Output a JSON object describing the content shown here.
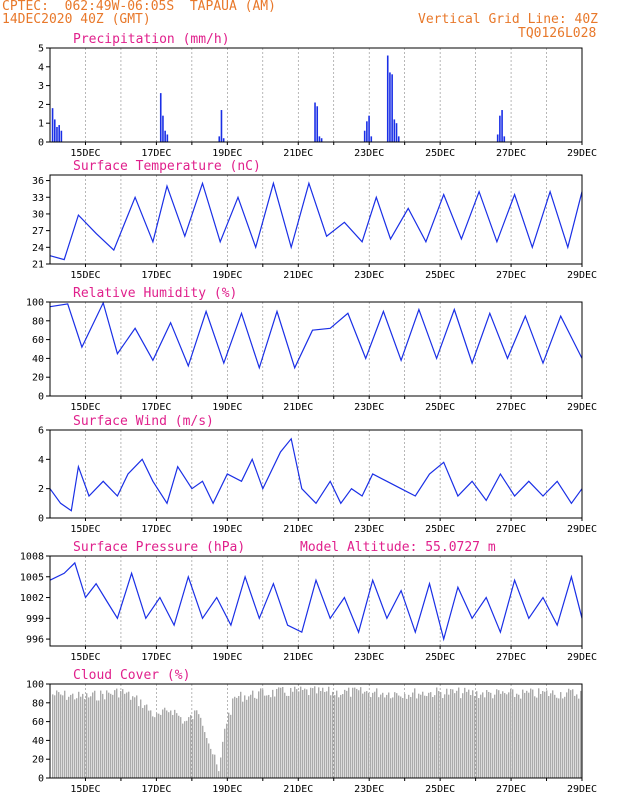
{
  "header": {
    "line1": "CPTEC:  062:49W-06:05S  TAPAUA (AM)",
    "line2": "14DEC2020 40Z (GMT)",
    "grid_note": "Vertical Grid Line: 40Z",
    "code": "TQ0126L028"
  },
  "colors": {
    "header": "#e8782a",
    "title": "#e0208c",
    "series": "#1a2fe6",
    "cloud": "#aaaaaa"
  },
  "chart_data": [
    {
      "type": "bar",
      "title": "Precipitation (mm/h)",
      "ylim": [
        0,
        5
      ],
      "yticks": [
        "0",
        "1",
        "2",
        "3",
        "4",
        "5"
      ],
      "xticks": [
        "15DEC",
        "17DEC",
        "19DEC",
        "21DEC",
        "23DEC",
        "25DEC",
        "27DEC",
        "29DEC"
      ],
      "bursts": [
        {
          "x": 14.05,
          "values": [
            1.8,
            1.2,
            0.8,
            0.9,
            0.6
          ]
        },
        {
          "x": 17.1,
          "values": [
            2.6,
            1.4,
            0.6,
            0.4
          ]
        },
        {
          "x": 18.75,
          "values": [
            0.3,
            1.7,
            0.2
          ]
        },
        {
          "x": 21.45,
          "values": [
            2.1,
            1.9,
            0.3,
            0.2
          ]
        },
        {
          "x": 22.85,
          "values": [
            0.6,
            1.1,
            1.4,
            0.3
          ]
        },
        {
          "x": 23.5,
          "values": [
            4.6,
            3.7,
            3.6,
            1.2,
            1.0,
            0.3
          ]
        },
        {
          "x": 26.6,
          "values": [
            0.4,
            1.4,
            1.7,
            0.3
          ]
        }
      ]
    },
    {
      "type": "line",
      "title": "Surface Temperature (nC)",
      "ylim": [
        21,
        37
      ],
      "yticks": [
        "21",
        "24",
        "27",
        "30",
        "33",
        "36"
      ],
      "xticks": [
        "15DEC",
        "17DEC",
        "19DEC",
        "21DEC",
        "23DEC",
        "25DEC",
        "27DEC",
        "29DEC"
      ],
      "points": [
        [
          14,
          22.5
        ],
        [
          14.4,
          21.8
        ],
        [
          14.8,
          29.8
        ],
        [
          15.3,
          26.5
        ],
        [
          15.8,
          23.5
        ],
        [
          16.4,
          33
        ],
        [
          16.9,
          25
        ],
        [
          17.3,
          35
        ],
        [
          17.8,
          26
        ],
        [
          18.3,
          35.5
        ],
        [
          18.8,
          25
        ],
        [
          19.3,
          33
        ],
        [
          19.8,
          24
        ],
        [
          20.3,
          35.5
        ],
        [
          20.8,
          24
        ],
        [
          21.3,
          35.5
        ],
        [
          21.8,
          26
        ],
        [
          22.3,
          28.5
        ],
        [
          22.8,
          25
        ],
        [
          23.2,
          33
        ],
        [
          23.6,
          25.5
        ],
        [
          24.1,
          31
        ],
        [
          24.6,
          25
        ],
        [
          25.1,
          33.5
        ],
        [
          25.6,
          25.5
        ],
        [
          26.1,
          34
        ],
        [
          26.6,
          25
        ],
        [
          27.1,
          33.5
        ],
        [
          27.6,
          24
        ],
        [
          28.1,
          34
        ],
        [
          28.6,
          24
        ],
        [
          29,
          34
        ]
      ]
    },
    {
      "type": "line",
      "title": "Relative Humidity (%)",
      "ylim": [
        0,
        100
      ],
      "yticks": [
        "0",
        "20",
        "40",
        "60",
        "80",
        "100"
      ],
      "xticks": [
        "15DEC",
        "17DEC",
        "19DEC",
        "21DEC",
        "23DEC",
        "25DEC",
        "27DEC",
        "29DEC"
      ],
      "points": [
        [
          14,
          95
        ],
        [
          14.5,
          98
        ],
        [
          14.9,
          52
        ],
        [
          15.5,
          99
        ],
        [
          15.9,
          45
        ],
        [
          16.4,
          72
        ],
        [
          16.9,
          38
        ],
        [
          17.4,
          78
        ],
        [
          17.9,
          32
        ],
        [
          18.4,
          90
        ],
        [
          18.9,
          35
        ],
        [
          19.4,
          88
        ],
        [
          19.9,
          30
        ],
        [
          20.4,
          90
        ],
        [
          20.9,
          30
        ],
        [
          21.4,
          70
        ],
        [
          21.9,
          72
        ],
        [
          22.4,
          88
        ],
        [
          22.9,
          40
        ],
        [
          23.4,
          90
        ],
        [
          23.9,
          38
        ],
        [
          24.4,
          92
        ],
        [
          24.9,
          40
        ],
        [
          25.4,
          92
        ],
        [
          25.9,
          35
        ],
        [
          26.4,
          88
        ],
        [
          26.9,
          40
        ],
        [
          27.4,
          85
        ],
        [
          27.9,
          35
        ],
        [
          28.4,
          85
        ],
        [
          29,
          40
        ]
      ]
    },
    {
      "type": "line",
      "title": "Surface Wind (m/s)",
      "ylim": [
        0,
        6
      ],
      "yticks": [
        "0",
        "2",
        "4",
        "6"
      ],
      "xticks": [
        "15DEC",
        "17DEC",
        "19DEC",
        "21DEC",
        "23DEC",
        "25DEC",
        "27DEC",
        "29DEC"
      ],
      "points": [
        [
          14,
          2
        ],
        [
          14.3,
          1
        ],
        [
          14.6,
          0.5
        ],
        [
          14.8,
          3.5
        ],
        [
          15.1,
          1.5
        ],
        [
          15.5,
          2.5
        ],
        [
          15.9,
          1.5
        ],
        [
          16.2,
          3
        ],
        [
          16.6,
          4
        ],
        [
          16.9,
          2.5
        ],
        [
          17.3,
          1
        ],
        [
          17.6,
          3.5
        ],
        [
          18,
          2
        ],
        [
          18.3,
          2.5
        ],
        [
          18.6,
          1
        ],
        [
          19,
          3
        ],
        [
          19.4,
          2.5
        ],
        [
          19.7,
          4
        ],
        [
          20,
          2
        ],
        [
          20.5,
          4.5
        ],
        [
          20.8,
          5.4
        ],
        [
          21.1,
          2
        ],
        [
          21.5,
          1
        ],
        [
          21.9,
          2.5
        ],
        [
          22.2,
          1
        ],
        [
          22.5,
          2
        ],
        [
          22.8,
          1.5
        ],
        [
          23.1,
          3
        ],
        [
          23.5,
          2.5
        ],
        [
          23.9,
          2
        ],
        [
          24.3,
          1.5
        ],
        [
          24.7,
          3
        ],
        [
          25.1,
          3.8
        ],
        [
          25.5,
          1.5
        ],
        [
          25.9,
          2.5
        ],
        [
          26.3,
          1.2
        ],
        [
          26.7,
          3
        ],
        [
          27.1,
          1.5
        ],
        [
          27.5,
          2.5
        ],
        [
          27.9,
          1.5
        ],
        [
          28.3,
          2.5
        ],
        [
          28.7,
          1
        ],
        [
          29,
          2
        ]
      ]
    },
    {
      "type": "line",
      "title": "Surface Pressure (hPa)",
      "subtitle": "Model Altitude: 55.0727 m",
      "ylim": [
        995,
        1008
      ],
      "yticks": [
        "996",
        "999",
        "1002",
        "1005",
        "1008"
      ],
      "xticks": [
        "15DEC",
        "17DEC",
        "19DEC",
        "21DEC",
        "23DEC",
        "25DEC",
        "27DEC",
        "29DEC"
      ],
      "points": [
        [
          14,
          1004.5
        ],
        [
          14.4,
          1005.5
        ],
        [
          14.7,
          1007
        ],
        [
          15,
          1002
        ],
        [
          15.3,
          1004
        ],
        [
          15.6,
          1001.5
        ],
        [
          15.9,
          999
        ],
        [
          16.3,
          1005.5
        ],
        [
          16.7,
          999
        ],
        [
          17.1,
          1002
        ],
        [
          17.5,
          998
        ],
        [
          17.9,
          1005
        ],
        [
          18.3,
          999
        ],
        [
          18.7,
          1002
        ],
        [
          19.1,
          998
        ],
        [
          19.5,
          1005
        ],
        [
          19.9,
          999
        ],
        [
          20.3,
          1004
        ],
        [
          20.7,
          998
        ],
        [
          21.1,
          997
        ],
        [
          21.5,
          1004.5
        ],
        [
          21.9,
          999
        ],
        [
          22.3,
          1002
        ],
        [
          22.7,
          997
        ],
        [
          23.1,
          1004.5
        ],
        [
          23.5,
          999
        ],
        [
          23.9,
          1003
        ],
        [
          24.3,
          997
        ],
        [
          24.7,
          1004
        ],
        [
          25.1,
          996
        ],
        [
          25.5,
          1003.5
        ],
        [
          25.9,
          999
        ],
        [
          26.3,
          1002
        ],
        [
          26.7,
          997
        ],
        [
          27.1,
          1004.5
        ],
        [
          27.5,
          999
        ],
        [
          27.9,
          1002
        ],
        [
          28.3,
          998
        ],
        [
          28.7,
          1005
        ],
        [
          29,
          999
        ]
      ]
    },
    {
      "type": "bar",
      "title": "Cloud Cover (%)",
      "ylim": [
        0,
        100
      ],
      "yticks": [
        "0",
        "20",
        "40",
        "60",
        "80",
        "100"
      ],
      "xticks": [
        "15DEC",
        "17DEC",
        "19DEC",
        "21DEC",
        "23DEC",
        "25DEC",
        "27DEC",
        "29DEC"
      ],
      "profile": [
        [
          14,
          95
        ],
        [
          15,
          92
        ],
        [
          16,
          98
        ],
        [
          16.6,
          85
        ],
        [
          17,
          70
        ],
        [
          17.4,
          80
        ],
        [
          17.8,
          65
        ],
        [
          18.2,
          78
        ],
        [
          18.5,
          40
        ],
        [
          18.75,
          10
        ],
        [
          18.9,
          60
        ],
        [
          19.2,
          92
        ],
        [
          20,
          96
        ],
        [
          21,
          98
        ],
        [
          22,
          97
        ],
        [
          23,
          97
        ],
        [
          24,
          96
        ],
        [
          25,
          97
        ],
        [
          26,
          96
        ],
        [
          27,
          95
        ],
        [
          28,
          96
        ],
        [
          29,
          96
        ]
      ]
    }
  ]
}
